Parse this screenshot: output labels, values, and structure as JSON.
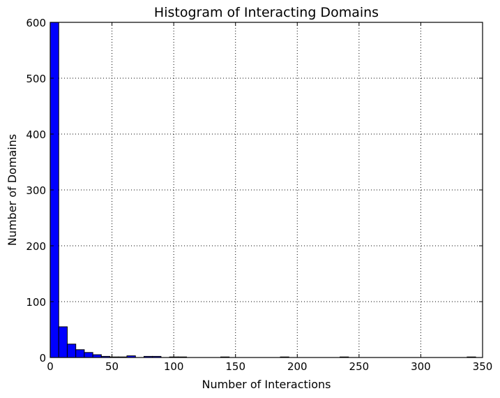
{
  "chart_data": {
    "type": "bar",
    "title": "Histogram of Interacting Domains",
    "xlabel": "Number of Interactions",
    "ylabel": "Number of Domains",
    "xlim": [
      0,
      350
    ],
    "ylim": [
      0,
      600
    ],
    "xticks": [
      0,
      50,
      100,
      150,
      200,
      250,
      300,
      350
    ],
    "yticks": [
      0,
      100,
      200,
      300,
      400,
      500,
      600
    ],
    "grid": true,
    "bar_color": "#0000ff",
    "bin_width": 6.9,
    "bins": [
      {
        "start": 0.0,
        "count": 600
      },
      {
        "start": 6.9,
        "count": 55
      },
      {
        "start": 13.8,
        "count": 24
      },
      {
        "start": 20.7,
        "count": 14
      },
      {
        "start": 27.6,
        "count": 9
      },
      {
        "start": 34.5,
        "count": 5
      },
      {
        "start": 41.4,
        "count": 2
      },
      {
        "start": 48.3,
        "count": 1
      },
      {
        "start": 55.2,
        "count": 1
      },
      {
        "start": 62.1,
        "count": 3
      },
      {
        "start": 69.0,
        "count": 0
      },
      {
        "start": 75.9,
        "count": 2
      },
      {
        "start": 82.8,
        "count": 2
      },
      {
        "start": 89.7,
        "count": 0
      },
      {
        "start": 96.6,
        "count": 1
      },
      {
        "start": 103.5,
        "count": 1
      },
      {
        "start": 138.0,
        "count": 1
      },
      {
        "start": 186.3,
        "count": 1
      },
      {
        "start": 234.6,
        "count": 1
      },
      {
        "start": 337.5,
        "count": 1
      }
    ]
  }
}
